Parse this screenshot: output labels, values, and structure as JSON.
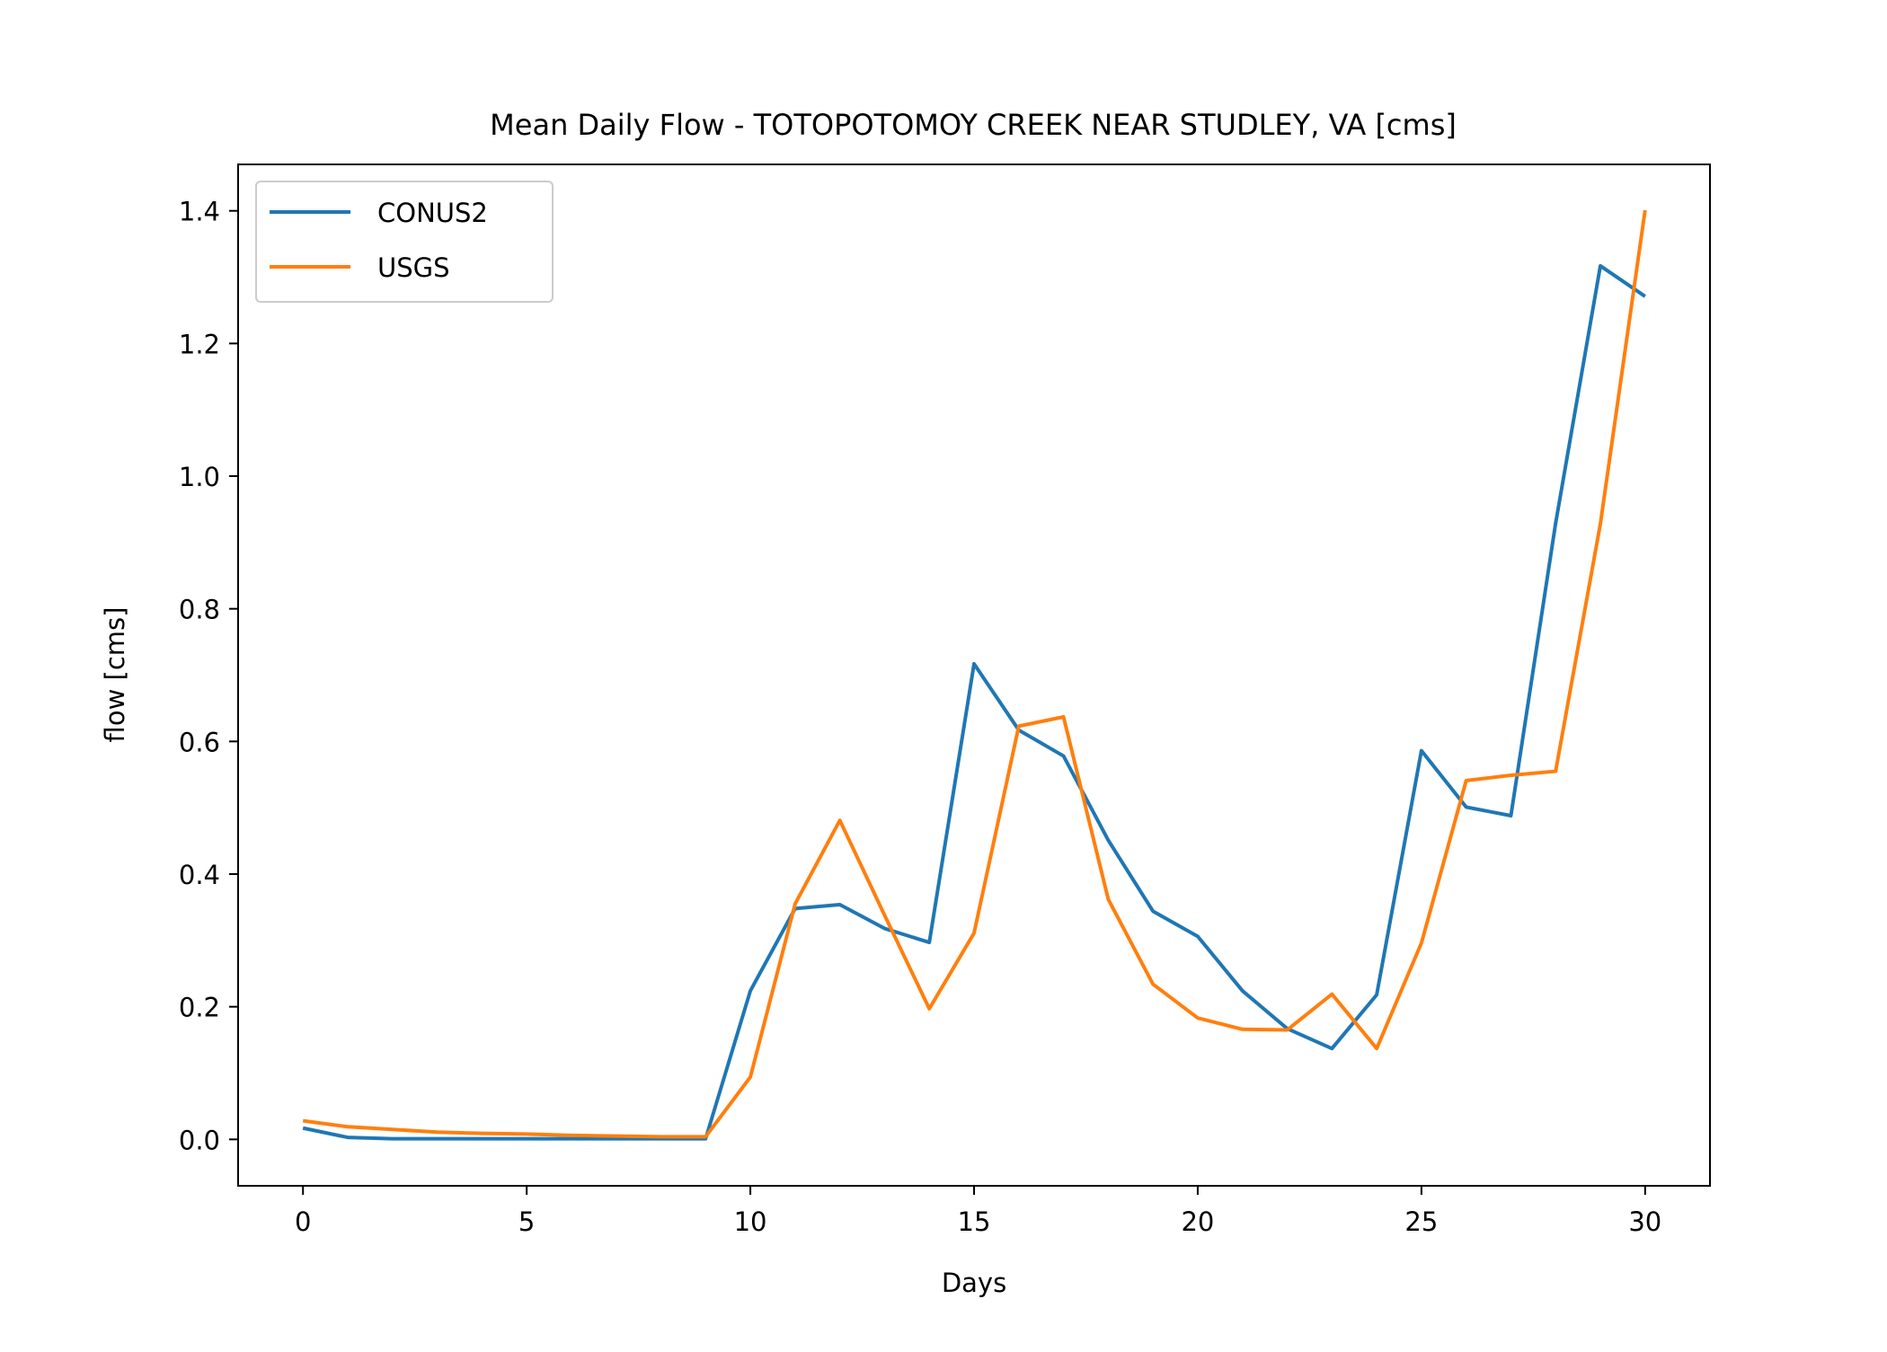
{
  "chart_data": {
    "type": "line",
    "title": "Mean Daily Flow - TOTOPOTOMOY CREEK NEAR STUDLEY, VA [cms]",
    "xlabel": "Days",
    "ylabel": "flow [cms]",
    "xlim": [
      -1.45,
      31.45
    ],
    "ylim": [
      -0.07,
      1.47
    ],
    "xticks": [
      0,
      5,
      10,
      15,
      20,
      25,
      30
    ],
    "xtick_labels": [
      "0",
      "5",
      "10",
      "15",
      "20",
      "25",
      "30"
    ],
    "yticks": [
      0.0,
      0.2,
      0.4,
      0.6,
      0.8,
      1.0,
      1.2,
      1.4
    ],
    "ytick_labels": [
      "0.0",
      "0.2",
      "0.4",
      "0.6",
      "0.8",
      "1.0",
      "1.2",
      "1.4"
    ],
    "grid": false,
    "legend_position": "top-left",
    "x": [
      0,
      1,
      2,
      3,
      4,
      5,
      6,
      7,
      8,
      9,
      10,
      11,
      12,
      13,
      14,
      15,
      16,
      17,
      18,
      19,
      20,
      21,
      22,
      23,
      24,
      25,
      26,
      27,
      28,
      29,
      30
    ],
    "series": [
      {
        "name": "CONUS2",
        "color": "#1f77b4",
        "values": [
          0.017,
          0.003,
          0.001,
          0.001,
          0.001,
          0.001,
          0.001,
          0.001,
          0.001,
          0.001,
          0.224,
          0.348,
          0.354,
          0.318,
          0.297,
          0.717,
          0.617,
          0.578,
          0.451,
          0.344,
          0.306,
          0.224,
          0.167,
          0.137,
          0.218,
          0.586,
          0.501,
          0.488,
          0.929,
          1.317,
          1.271
        ]
      },
      {
        "name": "USGS",
        "color": "#ff7f0e",
        "values": [
          0.028,
          0.019,
          0.015,
          0.011,
          0.009,
          0.008,
          0.006,
          0.005,
          0.004,
          0.004,
          0.094,
          0.355,
          0.481,
          0.338,
          0.197,
          0.311,
          0.623,
          0.637,
          0.362,
          0.234,
          0.183,
          0.166,
          0.165,
          0.219,
          0.137,
          0.296,
          0.541,
          0.549,
          0.555,
          0.928,
          1.401
        ]
      }
    ]
  }
}
